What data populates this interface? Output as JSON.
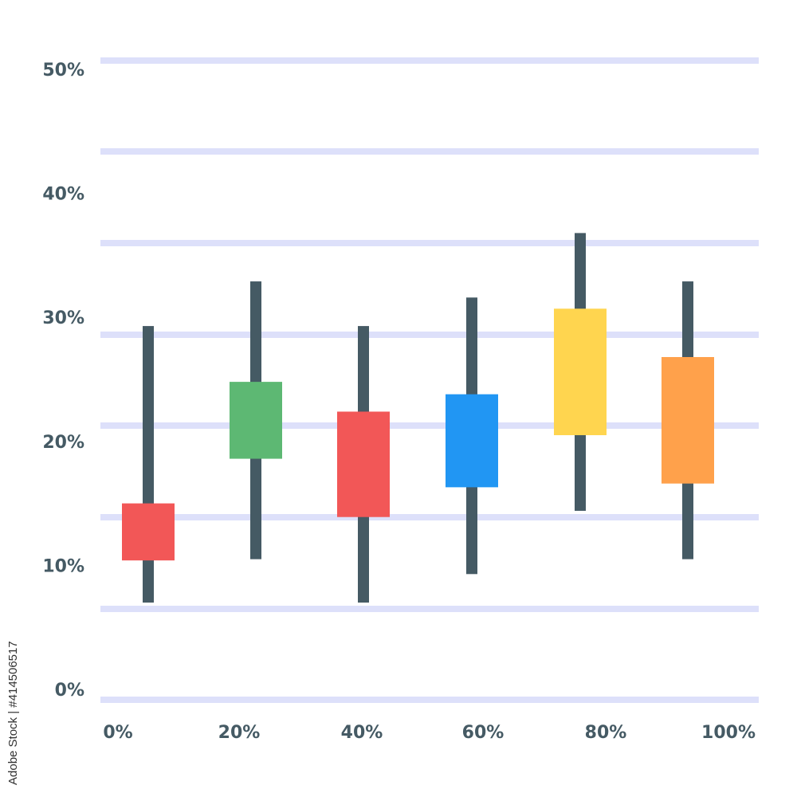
{
  "chart_data": {
    "type": "candlestick",
    "title": "",
    "xlabel": "",
    "ylabel": "",
    "x_tick_labels": [
      "0%",
      "20%",
      "40%",
      "60%",
      "80%",
      "100%"
    ],
    "y_tick_labels": [
      "0%",
      "10%",
      "20%",
      "30%",
      "40%",
      "50%"
    ],
    "ylim": [
      0,
      50
    ],
    "grid": true,
    "candles": [
      {
        "high": 29.3,
        "low": 7.0,
        "box_top": 15.0,
        "box_bottom": 10.4,
        "color": "#f25757"
      },
      {
        "high": 32.9,
        "low": 10.5,
        "box_top": 24.8,
        "box_bottom": 18.6,
        "color": "#5db873"
      },
      {
        "high": 29.3,
        "low": 7.0,
        "box_top": 22.4,
        "box_bottom": 13.9,
        "color": "#f25757"
      },
      {
        "high": 31.6,
        "low": 9.3,
        "box_top": 23.8,
        "box_bottom": 16.3,
        "color": "#2196f3"
      },
      {
        "high": 36.8,
        "low": 14.4,
        "box_top": 30.7,
        "box_bottom": 20.5,
        "color": "#ffd54f"
      },
      {
        "high": 32.9,
        "low": 10.5,
        "box_top": 26.8,
        "box_bottom": 16.6,
        "color": "#ffa14b"
      }
    ],
    "wick_color": "#455a64",
    "grid_color": "#dde0fa"
  },
  "watermark": "Adobe Stock | #414506517"
}
